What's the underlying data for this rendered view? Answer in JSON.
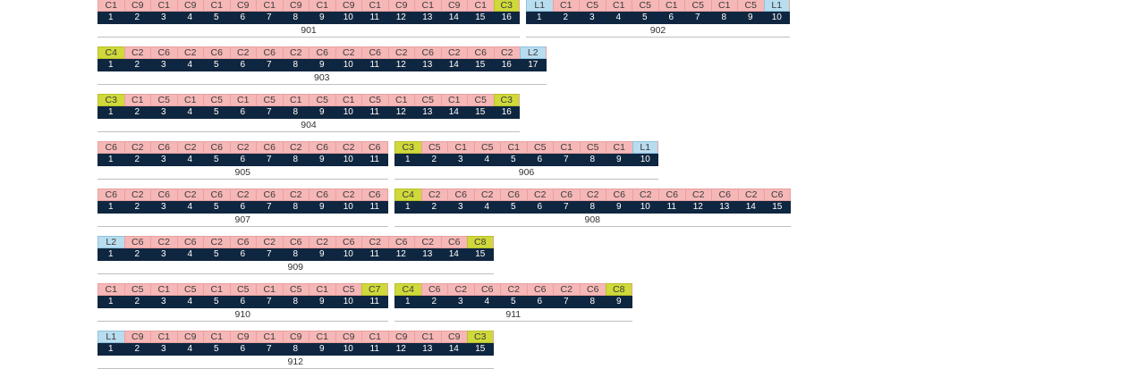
{
  "colors": {
    "C": "#f6b7b7",
    "Y": "#cfd93a",
    "L": "#b8ddef",
    "number_row": "#0f2640",
    "divider": "#bfbfbf"
  },
  "groups": [
    {
      "label": "901",
      "codes": [
        "C1",
        "C9",
        "C1",
        "C9",
        "C1",
        "C9",
        "C1",
        "C9",
        "C1",
        "C9",
        "C1",
        "C9",
        "C1",
        "C9",
        "C1",
        "C3"
      ],
      "types": [
        "C",
        "C",
        "C",
        "C",
        "C",
        "C",
        "C",
        "C",
        "C",
        "C",
        "C",
        "C",
        "C",
        "C",
        "C",
        "Y"
      ],
      "numbers": [
        "1",
        "2",
        "3",
        "4",
        "5",
        "6",
        "7",
        "8",
        "9",
        "10",
        "11",
        "12",
        "13",
        "14",
        "15",
        "16"
      ]
    },
    {
      "label": "902",
      "codes": [
        "L1",
        "C1",
        "C5",
        "C1",
        "C5",
        "C1",
        "C5",
        "C1",
        "C5",
        "L1"
      ],
      "types": [
        "L",
        "C",
        "C",
        "C",
        "C",
        "C",
        "C",
        "C",
        "C",
        "L"
      ],
      "numbers": [
        "1",
        "2",
        "3",
        "4",
        "5",
        "6",
        "7",
        "8",
        "9",
        "10"
      ]
    },
    {
      "label": "903",
      "codes": [
        "C4",
        "C2",
        "C6",
        "C2",
        "C6",
        "C2",
        "C6",
        "C2",
        "C6",
        "C2",
        "C6",
        "C2",
        "C6",
        "C2",
        "C6",
        "C2",
        "L2"
      ],
      "types": [
        "Y",
        "C",
        "C",
        "C",
        "C",
        "C",
        "C",
        "C",
        "C",
        "C",
        "C",
        "C",
        "C",
        "C",
        "C",
        "C",
        "L"
      ],
      "numbers": [
        "1",
        "2",
        "3",
        "4",
        "5",
        "6",
        "7",
        "8",
        "9",
        "10",
        "11",
        "12",
        "13",
        "14",
        "15",
        "16",
        "17"
      ]
    },
    {
      "label": "904",
      "codes": [
        "C3",
        "C1",
        "C5",
        "C1",
        "C5",
        "C1",
        "C5",
        "C1",
        "C5",
        "C1",
        "C5",
        "C1",
        "C5",
        "C1",
        "C5",
        "C3"
      ],
      "types": [
        "Y",
        "C",
        "C",
        "C",
        "C",
        "C",
        "C",
        "C",
        "C",
        "C",
        "C",
        "C",
        "C",
        "C",
        "C",
        "Y"
      ],
      "numbers": [
        "1",
        "2",
        "3",
        "4",
        "5",
        "6",
        "7",
        "8",
        "9",
        "10",
        "11",
        "12",
        "13",
        "14",
        "15",
        "16"
      ]
    },
    {
      "label": "905",
      "codes": [
        "C6",
        "C2",
        "C6",
        "C2",
        "C6",
        "C2",
        "C6",
        "C2",
        "C6",
        "C2",
        "C6"
      ],
      "types": [
        "C",
        "C",
        "C",
        "C",
        "C",
        "C",
        "C",
        "C",
        "C",
        "C",
        "C"
      ],
      "numbers": [
        "1",
        "2",
        "3",
        "4",
        "5",
        "6",
        "7",
        "8",
        "9",
        "10",
        "11"
      ]
    },
    {
      "label": "906",
      "codes": [
        "C3",
        "C5",
        "C1",
        "C5",
        "C1",
        "C5",
        "C1",
        "C5",
        "C1",
        "L1"
      ],
      "types": [
        "Y",
        "C",
        "C",
        "C",
        "C",
        "C",
        "C",
        "C",
        "C",
        "L"
      ],
      "numbers": [
        "1",
        "2",
        "3",
        "4",
        "5",
        "6",
        "7",
        "8",
        "9",
        "10"
      ]
    },
    {
      "label": "907",
      "codes": [
        "C6",
        "C2",
        "C6",
        "C2",
        "C6",
        "C2",
        "C6",
        "C2",
        "C6",
        "C2",
        "C6"
      ],
      "types": [
        "C",
        "C",
        "C",
        "C",
        "C",
        "C",
        "C",
        "C",
        "C",
        "C",
        "C"
      ],
      "numbers": [
        "1",
        "2",
        "3",
        "4",
        "5",
        "6",
        "7",
        "8",
        "9",
        "10",
        "11"
      ]
    },
    {
      "label": "908",
      "codes": [
        "C4",
        "C2",
        "C6",
        "C2",
        "C6",
        "C2",
        "C6",
        "C2",
        "C6",
        "C2",
        "C6",
        "C2",
        "C6",
        "C2",
        "C6"
      ],
      "types": [
        "Y",
        "C",
        "C",
        "C",
        "C",
        "C",
        "C",
        "C",
        "C",
        "C",
        "C",
        "C",
        "C",
        "C",
        "C"
      ],
      "numbers": [
        "1",
        "2",
        "3",
        "4",
        "5",
        "6",
        "7",
        "8",
        "9",
        "10",
        "11",
        "12",
        "13",
        "14",
        "15"
      ]
    },
    {
      "label": "909",
      "codes": [
        "L2",
        "C6",
        "C2",
        "C6",
        "C2",
        "C6",
        "C2",
        "C6",
        "C2",
        "C6",
        "C2",
        "C6",
        "C2",
        "C6",
        "C8"
      ],
      "types": [
        "L",
        "C",
        "C",
        "C",
        "C",
        "C",
        "C",
        "C",
        "C",
        "C",
        "C",
        "C",
        "C",
        "C",
        "Y"
      ],
      "numbers": [
        "1",
        "2",
        "3",
        "4",
        "5",
        "6",
        "7",
        "8",
        "9",
        "10",
        "11",
        "12",
        "13",
        "14",
        "15"
      ]
    },
    {
      "label": "910",
      "codes": [
        "C1",
        "C5",
        "C1",
        "C5",
        "C1",
        "C5",
        "C1",
        "C5",
        "C1",
        "C5",
        "C7"
      ],
      "types": [
        "C",
        "C",
        "C",
        "C",
        "C",
        "C",
        "C",
        "C",
        "C",
        "C",
        "Y"
      ],
      "numbers": [
        "1",
        "2",
        "3",
        "4",
        "5",
        "6",
        "7",
        "8",
        "9",
        "10",
        "11"
      ]
    },
    {
      "label": "911",
      "codes": [
        "C4",
        "C6",
        "C2",
        "C6",
        "C2",
        "C6",
        "C2",
        "C6",
        "C8"
      ],
      "types": [
        "Y",
        "C",
        "C",
        "C",
        "C",
        "C",
        "C",
        "C",
        "Y"
      ],
      "numbers": [
        "1",
        "2",
        "3",
        "4",
        "5",
        "6",
        "7",
        "8",
        "9"
      ]
    },
    {
      "label": "912",
      "codes": [
        "L1",
        "C9",
        "C1",
        "C9",
        "C1",
        "C9",
        "C1",
        "C9",
        "C1",
        "C9",
        "C1",
        "C9",
        "C1",
        "C9",
        "C3"
      ],
      "types": [
        "L",
        "C",
        "C",
        "C",
        "C",
        "C",
        "C",
        "C",
        "C",
        "C",
        "C",
        "C",
        "C",
        "C",
        "Y"
      ],
      "numbers": [
        "1",
        "2",
        "3",
        "4",
        "5",
        "6",
        "7",
        "8",
        "9",
        "10",
        "11",
        "12",
        "13",
        "14",
        "15"
      ]
    }
  ]
}
